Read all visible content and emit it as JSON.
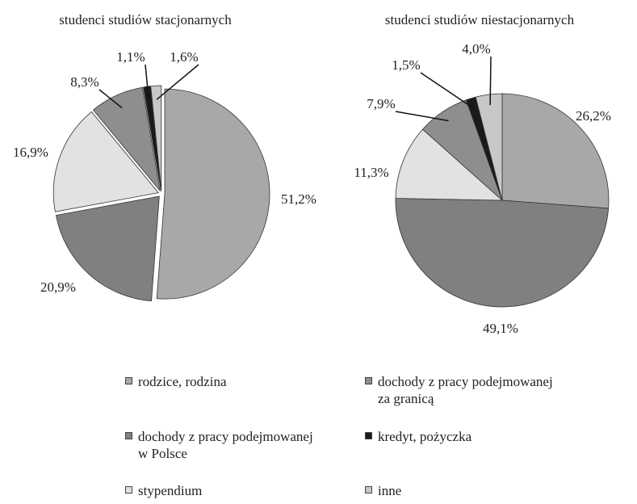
{
  "chart_data": [
    {
      "type": "pie",
      "title": "studenci studiów stacjonarnych",
      "categories": [
        "rodzice, rodzina",
        "dochody z pracy podejmowanej w Polsce",
        "stypendium",
        "dochody z pracy podejmowanej za granicą",
        "kredyt, pożyczka",
        "inne"
      ],
      "values": [
        51.2,
        20.9,
        16.9,
        8.3,
        1.1,
        1.6
      ],
      "value_labels": [
        "51,2%",
        "20,9%",
        "16,9%",
        "8,3%",
        "1,1%",
        "1,6%"
      ],
      "colors": [
        "#a8a8a8",
        "#808080",
        "#e2e2e2",
        "#8e8e8e",
        "#1a1a1a",
        "#c8c8c8"
      ]
    },
    {
      "type": "pie",
      "title": "studenci studiów niestacjonarnych",
      "categories": [
        "rodzice, rodzina",
        "dochody z pracy podejmowanej w Polsce",
        "stypendium",
        "dochody z pracy podejmowanej za granicą",
        "kredyt, pożyczka",
        "inne"
      ],
      "values": [
        26.2,
        49.1,
        11.3,
        7.9,
        1.5,
        4.0
      ],
      "value_labels": [
        "26,2%",
        "49,1%",
        "11,3%",
        "7,9%",
        "1,5%",
        "4,0%"
      ],
      "colors": [
        "#a8a8a8",
        "#808080",
        "#e2e2e2",
        "#8e8e8e",
        "#1a1a1a",
        "#c8c8c8"
      ]
    }
  ]
}
